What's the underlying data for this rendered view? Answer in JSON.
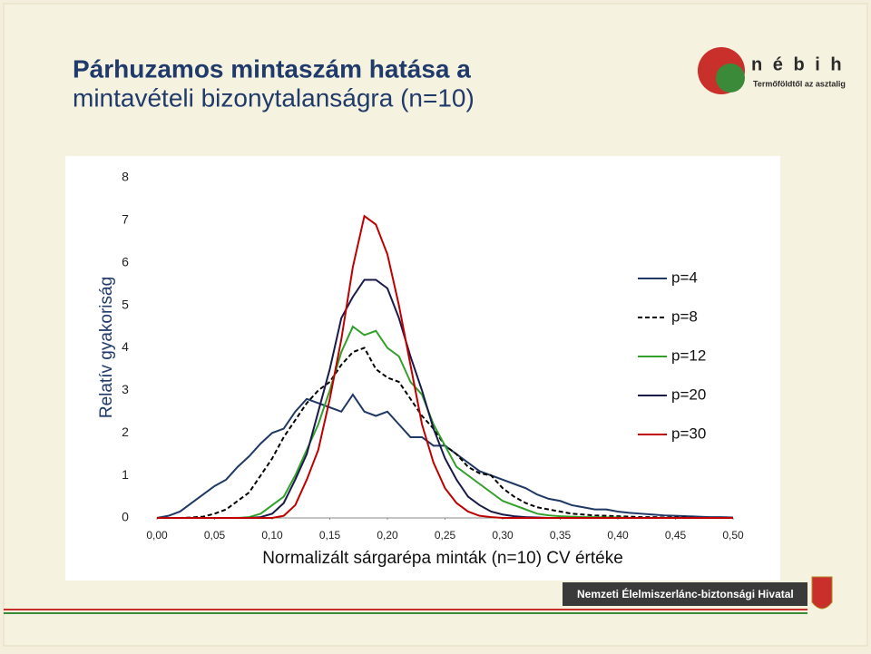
{
  "header": {
    "title": [
      "Párhuzamos mintaszám hatása a",
      "mintavételi bizonytalanságra (n=10)"
    ]
  },
  "logo": {
    "name": "n é b i h",
    "tagline": "Termőföldtől az asztalig"
  },
  "footer": {
    "text": "Nemzeti Élelmiszerlánc-biztonsági Hivatal"
  },
  "chart_data": {
    "type": "line",
    "x_label": "Normalizált sárgarépa minták (n=10) CV értéke",
    "y_label": "Relatív gyakoriság",
    "x": [
      0,
      0.01,
      0.02,
      0.03,
      0.04,
      0.05,
      0.06,
      0.07,
      0.08,
      0.09,
      0.1,
      0.11,
      0.12,
      0.13,
      0.14,
      0.15,
      0.16,
      0.17,
      0.18,
      0.19,
      0.2,
      0.21,
      0.22,
      0.23,
      0.24,
      0.25,
      0.26,
      0.27,
      0.28,
      0.29,
      0.3,
      0.31,
      0.32,
      0.33,
      0.34,
      0.35,
      0.36,
      0.37,
      0.38,
      0.39,
      0.4,
      0.41,
      0.42,
      0.43,
      0.44,
      0.45,
      0.46,
      0.47,
      0.48,
      0.49,
      0.5
    ],
    "xlim": [
      0,
      0.5
    ],
    "xticks": [
      {
        "value": 0,
        "label": "0,00"
      },
      {
        "value": 0.05,
        "label": "0,05"
      },
      {
        "value": 0.1,
        "label": "0,10"
      },
      {
        "value": 0.15,
        "label": "0,15"
      },
      {
        "value": 0.2,
        "label": "0,20"
      },
      {
        "value": 0.25,
        "label": "0,25"
      },
      {
        "value": 0.3,
        "label": "0,30"
      },
      {
        "value": 0.35,
        "label": "0,35"
      },
      {
        "value": 0.4,
        "label": "0,40"
      },
      {
        "value": 0.45,
        "label": "0,45"
      },
      {
        "value": 0.5,
        "label": "0,50"
      }
    ],
    "ylim": [
      0,
      8
    ],
    "yticks": [
      0,
      1,
      2,
      3,
      4,
      5,
      6,
      7,
      8
    ],
    "legend": "right",
    "series": [
      {
        "name": "p=4",
        "color": "#1f3864",
        "dash": false,
        "values": [
          0,
          0.05,
          0.15,
          0.35,
          0.55,
          0.75,
          0.9,
          1.2,
          1.45,
          1.75,
          2.0,
          2.1,
          2.5,
          2.8,
          2.7,
          2.6,
          2.5,
          2.9,
          2.5,
          2.4,
          2.5,
          2.2,
          1.9,
          1.9,
          1.7,
          1.7,
          1.5,
          1.3,
          1.1,
          1.0,
          0.9,
          0.8,
          0.7,
          0.55,
          0.45,
          0.4,
          0.3,
          0.25,
          0.2,
          0.2,
          0.15,
          0.12,
          0.1,
          0.08,
          0.06,
          0.05,
          0.04,
          0.03,
          0.02,
          0.02,
          0.01
        ]
      },
      {
        "name": "p=8",
        "color": "#000000",
        "dash": true,
        "values": [
          0,
          0,
          0,
          0.01,
          0.03,
          0.1,
          0.2,
          0.4,
          0.6,
          1.0,
          1.4,
          1.9,
          2.3,
          2.7,
          3.0,
          3.2,
          3.6,
          3.9,
          4.0,
          3.5,
          3.3,
          3.2,
          2.8,
          2.4,
          2.1,
          1.7,
          1.5,
          1.2,
          1.05,
          1.0,
          0.7,
          0.5,
          0.35,
          0.25,
          0.2,
          0.15,
          0.1,
          0.08,
          0.06,
          0.05,
          0.04,
          0.03,
          0.02,
          0.02,
          0.01,
          0.01,
          0.01,
          0,
          0,
          0,
          0
        ]
      },
      {
        "name": "p=12",
        "color": "#33a02c",
        "dash": false,
        "values": [
          0,
          0,
          0,
          0,
          0,
          0,
          0,
          0,
          0.02,
          0.1,
          0.3,
          0.5,
          1.0,
          1.6,
          2.2,
          3.0,
          3.9,
          4.5,
          4.3,
          4.4,
          4.0,
          3.8,
          3.2,
          2.9,
          2.2,
          1.7,
          1.2,
          1.0,
          0.8,
          0.6,
          0.4,
          0.3,
          0.2,
          0.1,
          0.06,
          0.04,
          0.03,
          0.02,
          0.02,
          0.01,
          0.01,
          0,
          0,
          0,
          0,
          0,
          0,
          0,
          0,
          0,
          0
        ]
      },
      {
        "name": "p=20",
        "color": "#1a1a4a",
        "dash": false,
        "values": [
          0,
          0,
          0,
          0,
          0,
          0,
          0,
          0,
          0,
          0.02,
          0.1,
          0.35,
          0.9,
          1.5,
          2.5,
          3.5,
          4.7,
          5.2,
          5.6,
          5.6,
          5.4,
          4.7,
          3.8,
          3.0,
          2.1,
          1.4,
          0.9,
          0.5,
          0.3,
          0.15,
          0.08,
          0.04,
          0.02,
          0.01,
          0,
          0,
          0,
          0,
          0,
          0,
          0,
          0,
          0,
          0,
          0,
          0,
          0,
          0,
          0,
          0,
          0
        ]
      },
      {
        "name": "p=30",
        "color": "#c00000",
        "dash": false,
        "values": [
          0,
          0,
          0,
          0,
          0,
          0,
          0,
          0,
          0,
          0,
          0,
          0.05,
          0.3,
          0.9,
          1.6,
          2.8,
          4.2,
          5.9,
          7.1,
          6.9,
          6.2,
          5.0,
          3.6,
          2.2,
          1.3,
          0.7,
          0.35,
          0.15,
          0.05,
          0.02,
          0,
          0,
          0,
          0,
          0,
          0,
          0,
          0,
          0,
          0,
          0,
          0,
          0,
          0,
          0,
          0,
          0,
          0,
          0,
          0,
          0
        ]
      }
    ]
  }
}
